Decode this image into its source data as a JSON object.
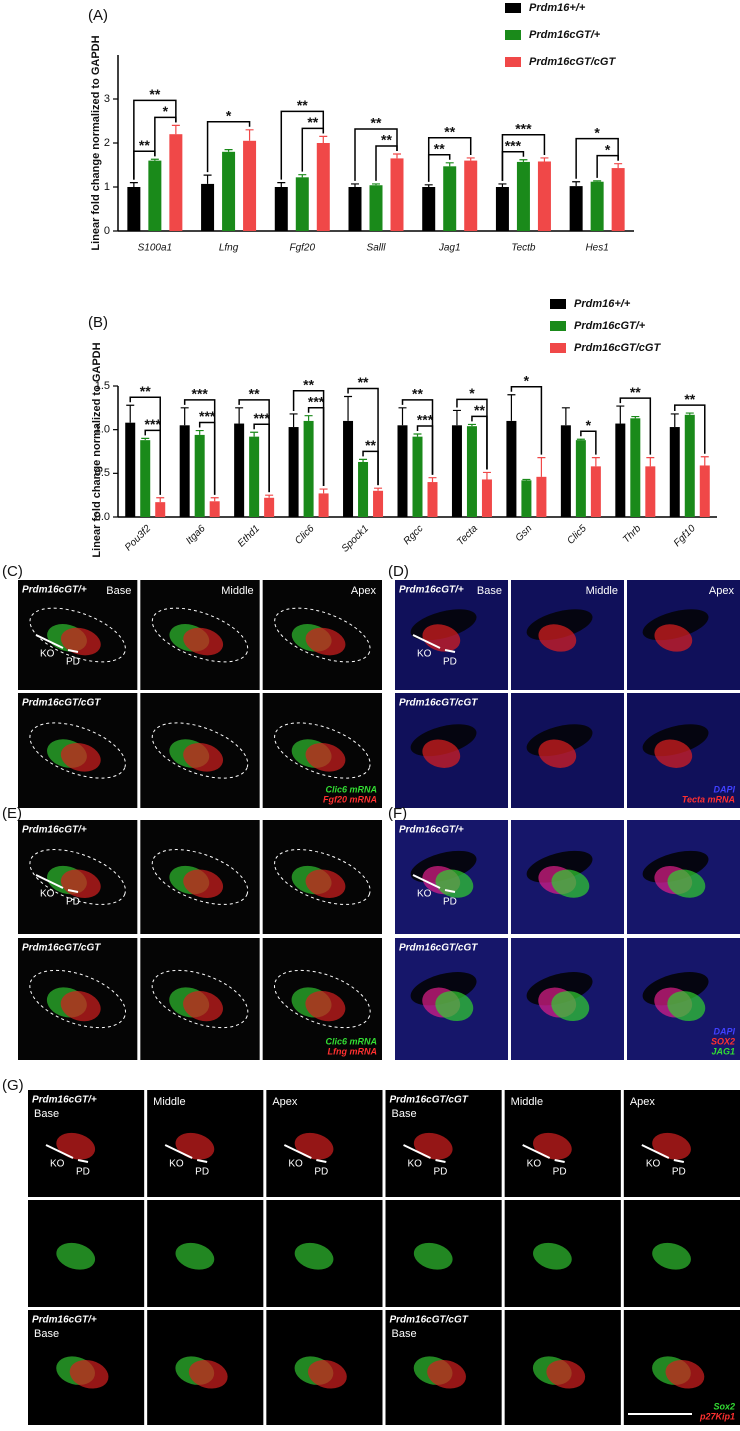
{
  "chart_data": [
    {
      "type": "bar",
      "panel_label": "(A)",
      "ylabel": "Linear fold change normalized to GAPDH",
      "categories": [
        "S100a1",
        "Lfng",
        "Fgf20",
        "Salll",
        "Jag1",
        "Tectb",
        "Hes1"
      ],
      "series": [
        {
          "name": "Prdm16+/+",
          "color": "#000000",
          "values": [
            1.0,
            1.07,
            1.0,
            1.0,
            1.0,
            1.0,
            1.02
          ],
          "errors": [
            0.1,
            0.2,
            0.1,
            0.07,
            0.05,
            0.07,
            0.1
          ]
        },
        {
          "name": "Prdm16cGT/+",
          "color": "#1a8a1a",
          "values": [
            1.6,
            1.8,
            1.22,
            1.04,
            1.47,
            1.57,
            1.12
          ],
          "errors": [
            0.03,
            0.05,
            0.06,
            0.03,
            0.08,
            0.05,
            0.02
          ]
        },
        {
          "name": "Prdm16cGT/cGT",
          "color": "#f04848",
          "values": [
            2.2,
            2.05,
            2.0,
            1.65,
            1.6,
            1.58,
            1.43
          ],
          "errors": [
            0.2,
            0.25,
            0.15,
            0.1,
            0.06,
            0.08,
            0.1
          ]
        }
      ],
      "ylim": [
        0,
        4
      ],
      "yticks": [
        0,
        1,
        2,
        3
      ],
      "annotations": [
        {
          "category": 0,
          "between": [
            0,
            1
          ],
          "text": "**"
        },
        {
          "category": 0,
          "between": [
            1,
            2
          ],
          "text": "*"
        },
        {
          "category": 0,
          "between": [
            0,
            2
          ],
          "text": "**"
        },
        {
          "category": 1,
          "between": [
            0,
            2
          ],
          "text": "*"
        },
        {
          "category": 2,
          "between": [
            1,
            2
          ],
          "text": "**"
        },
        {
          "category": 2,
          "between": [
            0,
            2
          ],
          "text": "**"
        },
        {
          "category": 3,
          "between": [
            1,
            2
          ],
          "text": "**"
        },
        {
          "category": 3,
          "between": [
            0,
            2
          ],
          "text": "**"
        },
        {
          "category": 4,
          "between": [
            0,
            1
          ],
          "text": "**"
        },
        {
          "category": 4,
          "between": [
            0,
            2
          ],
          "text": "**"
        },
        {
          "category": 5,
          "between": [
            0,
            1
          ],
          "text": "***"
        },
        {
          "category": 5,
          "between": [
            0,
            2
          ],
          "text": "***"
        },
        {
          "category": 6,
          "between": [
            1,
            2
          ],
          "text": "*"
        },
        {
          "category": 6,
          "between": [
            0,
            2
          ],
          "text": "*"
        }
      ]
    },
    {
      "type": "bar",
      "panel_label": "(B)",
      "ylabel": "Linear fold change normalized to GAPDH",
      "categories": [
        "Pou3f2",
        "Itga6",
        "Ethd1",
        "Clic6",
        "Spock1",
        "Rgcc",
        "Tecta",
        "Gsn",
        "Clic5",
        "Thrb",
        "Fgf10"
      ],
      "series": [
        {
          "name": "Prdm16+/+",
          "color": "#000000",
          "values": [
            1.08,
            1.05,
            1.07,
            1.03,
            1.1,
            1.05,
            1.05,
            1.1,
            1.05,
            1.07,
            1.03
          ],
          "errors": [
            0.2,
            0.2,
            0.18,
            0.15,
            0.28,
            0.2,
            0.17,
            0.3,
            0.2,
            0.2,
            0.15
          ]
        },
        {
          "name": "Prdm16cGT/+",
          "color": "#1a8a1a",
          "values": [
            0.88,
            0.94,
            0.92,
            1.1,
            0.63,
            0.92,
            1.04,
            0.42,
            0.88,
            1.13,
            1.17
          ],
          "errors": [
            0.02,
            0.05,
            0.05,
            0.06,
            0.03,
            0.03,
            0.02,
            0.01,
            0.01,
            0.02,
            0.02
          ]
        },
        {
          "name": "Prdm16cGT/cGT",
          "color": "#f04848",
          "values": [
            0.17,
            0.18,
            0.22,
            0.27,
            0.3,
            0.4,
            0.43,
            0.46,
            0.58,
            0.58,
            0.59
          ],
          "errors": [
            0.05,
            0.04,
            0.03,
            0.05,
            0.03,
            0.05,
            0.08,
            0.22,
            0.1,
            0.1,
            0.1
          ]
        }
      ],
      "ylim": [
        0,
        1.5
      ],
      "yticks": [
        {
          "value": 0,
          "label": "0.0"
        },
        0.5,
        {
          "value": 1,
          "label": "1.0"
        },
        1.5
      ],
      "annotations": [
        {
          "category": 0,
          "between": [
            1,
            2
          ],
          "text": "***"
        },
        {
          "category": 0,
          "between": [
            0,
            2
          ],
          "text": "**"
        },
        {
          "category": 1,
          "between": [
            1,
            2
          ],
          "text": "***"
        },
        {
          "category": 1,
          "between": [
            0,
            2
          ],
          "text": "***"
        },
        {
          "category": 2,
          "between": [
            1,
            2
          ],
          "text": "***"
        },
        {
          "category": 2,
          "between": [
            0,
            2
          ],
          "text": "**"
        },
        {
          "category": 3,
          "between": [
            1,
            2
          ],
          "text": "***"
        },
        {
          "category": 3,
          "between": [
            0,
            2
          ],
          "text": "**"
        },
        {
          "category": 4,
          "between": [
            1,
            2
          ],
          "text": "**"
        },
        {
          "category": 4,
          "between": [
            0,
            2
          ],
          "text": "**"
        },
        {
          "category": 5,
          "between": [
            1,
            2
          ],
          "text": "***"
        },
        {
          "category": 5,
          "between": [
            0,
            2
          ],
          "text": "**"
        },
        {
          "category": 6,
          "between": [
            1,
            2
          ],
          "text": "**"
        },
        {
          "category": 6,
          "between": [
            0,
            2
          ],
          "text": "*"
        },
        {
          "category": 7,
          "between": [
            0,
            2
          ],
          "text": "*"
        },
        {
          "category": 8,
          "between": [
            1,
            2
          ],
          "text": "*"
        },
        {
          "category": 9,
          "between": [
            0,
            2
          ],
          "text": "**"
        },
        {
          "category": 10,
          "between": [
            0,
            2
          ],
          "text": "**"
        }
      ]
    }
  ],
  "panels": [
    {
      "label": "(C)",
      "region_position": "right",
      "rows": [
        [
          {
            "genotype": "Prdm16cGT/+",
            "region": "Base",
            "ko": "KO",
            "pd": "PD"
          },
          {
            "region": "Middle"
          },
          {
            "region": "Apex"
          }
        ],
        [
          {
            "genotype": "Prdm16cGT/cGT"
          },
          null,
          {
            "legend": [
              {
                "text": "Clic6 mRNA",
                "color": "#33dd33"
              },
              {
                "text": "Fgf20 mRNA",
                "color": "#ff3030"
              }
            ]
          }
        ]
      ]
    },
    {
      "label": "(D)",
      "region_position": "right",
      "rows": [
        [
          {
            "genotype": "Prdm16cGT/+",
            "region": "Base",
            "ko": "KO",
            "pd": "PD"
          },
          {
            "region": "Middle"
          },
          {
            "region": "Apex"
          }
        ],
        [
          {
            "genotype": "Prdm16cGT/cGT"
          },
          null,
          {
            "legend": [
              {
                "text": "DAPI",
                "color": "#4040ff"
              },
              {
                "text": "Tecta mRNA",
                "color": "#ff3030"
              }
            ]
          }
        ]
      ]
    },
    {
      "label": "(E)",
      "region_position": "right",
      "rows": [
        [
          {
            "genotype": "Prdm16cGT/+",
            "ko": "KO",
            "pd": "PD"
          },
          null,
          null
        ],
        [
          {
            "genotype": "Prdm16cGT/cGT"
          },
          null,
          {
            "legend": [
              {
                "text": "Clic6 mRNA",
                "color": "#33dd33"
              },
              {
                "text": "Lfng mRNA",
                "color": "#ff3030"
              }
            ]
          }
        ]
      ]
    },
    {
      "label": "(F)",
      "region_position": "right",
      "rows": [
        [
          {
            "genotype": "Prdm16cGT/+",
            "ko": "KO",
            "pd": "PD"
          },
          null,
          null
        ],
        [
          {
            "genotype": "Prdm16cGT/cGT"
          },
          null,
          {
            "legend": [
              {
                "text": "DAPI",
                "color": "#4040ff"
              },
              {
                "text": "SOX2",
                "color": "#ff3030"
              },
              {
                "text": "JAG1",
                "color": "#33dd33"
              }
            ]
          }
        ]
      ]
    },
    {
      "label": "(G)",
      "region_position": "left",
      "rows": [
        [
          {
            "genotype": "Prdm16cGT/+",
            "region": "Base",
            "ko": "KO",
            "pd": "PD"
          },
          {
            "region": "Middle",
            "ko": "KO",
            "pd": "PD"
          },
          {
            "region": "Apex",
            "ko": "KO",
            "pd": "PD"
          },
          {
            "genotype": "Prdm16cGT/cGT",
            "region": "Base",
            "ko": "KO",
            "pd": "PD"
          },
          {
            "region": "Middle",
            "ko": "KO",
            "pd": "PD"
          },
          {
            "region": "Apex",
            "ko": "KO",
            "pd": "PD"
          }
        ],
        [
          null,
          null,
          null,
          null,
          null,
          null
        ],
        [
          {
            "genotype": "Prdm16cGT/+",
            "region": "Base"
          },
          null,
          null,
          {
            "genotype": "Prdm16cGT/cGT",
            "region": "Base"
          },
          null,
          {
            "legend": [
              {
                "text": "Sox2",
                "color": "#33dd33"
              },
              {
                "text": "p27Kip1",
                "color": "#ff3030"
              }
            ]
          }
        ]
      ]
    }
  ]
}
